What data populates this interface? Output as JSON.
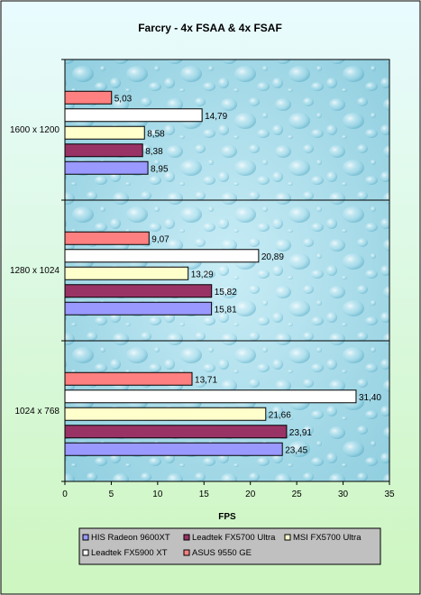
{
  "chart_data": {
    "type": "bar",
    "orientation": "horizontal",
    "title": "Farcry - 4x FSAA & 4x FSAF",
    "xlabel": "FPS",
    "ylabel": "",
    "xlim": [
      0,
      35
    ],
    "xticks": [
      "0",
      "5",
      "10",
      "15",
      "20",
      "25",
      "30",
      "35"
    ],
    "categories": [
      "1600 x 1200",
      "1280 x 1024",
      "1024 x 768"
    ],
    "series": [
      {
        "name": "HIS Radeon 9600XT",
        "color": "#9999ff",
        "values": [
          8.95,
          15.81,
          23.45
        ],
        "labels": [
          "8,95",
          "15,81",
          "23,45"
        ]
      },
      {
        "name": "Leadtek FX5700 Ultra",
        "color": "#993366",
        "values": [
          8.38,
          15.82,
          23.91
        ],
        "labels": [
          "8,38",
          "15,82",
          "23,91"
        ]
      },
      {
        "name": "MSI FX5700 Ultra",
        "color": "#ffffcc",
        "values": [
          8.58,
          13.29,
          21.66
        ],
        "labels": [
          "8,58",
          "13,29",
          "21,66"
        ]
      },
      {
        "name": "Leadtek FX5900 XT",
        "color": "#ffffff",
        "values": [
          14.79,
          20.89,
          31.4
        ],
        "labels": [
          "14,79",
          "20,89",
          "31,40"
        ]
      },
      {
        "name": "ASUS 9550 GE",
        "color": "#ff8080",
        "values": [
          5.03,
          9.07,
          13.71
        ],
        "labels": [
          "5,03",
          "9,07",
          "13,71"
        ]
      }
    ],
    "legend_position": "bottom",
    "grid": false
  }
}
